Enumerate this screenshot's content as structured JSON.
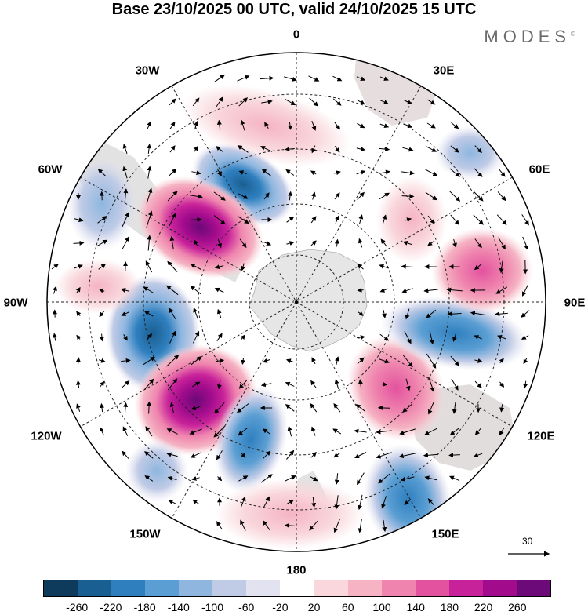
{
  "title": "Base 23/10/2025 00 UTC, valid 24/10/2025 15 UTC",
  "brand": "MODES",
  "brand_mark": "©",
  "longitude_labels": {
    "lon_0": "0",
    "lon_30e": "30E",
    "lon_60e": "60E",
    "lon_90e": "90E",
    "lon_120e": "120E",
    "lon_150e": "150E",
    "lon_180": "180",
    "lon_150w": "150W",
    "lon_120w": "120W",
    "lon_90w": "90W",
    "lon_60w": "60W",
    "lon_30w": "30W"
  },
  "reference_vector": "30",
  "colorbar": {
    "colors": [
      "#0e3a5c",
      "#1a5f92",
      "#2f7fbf",
      "#5a9ed3",
      "#8eb6df",
      "#c0cbe6",
      "#e3e2f0",
      "#ffffff",
      "#f9d7dc",
      "#f5b3c3",
      "#ef84ae",
      "#e3529f",
      "#c8229a",
      "#a10b8c",
      "#6b0a78"
    ],
    "tick_labels": [
      "-260",
      "-220",
      "-180",
      "-140",
      "-100",
      "-60",
      "-20",
      "20",
      "60",
      "100",
      "140",
      "180",
      "220",
      "260"
    ]
  },
  "colors": {
    "land_gray": "#d9d9d9",
    "antarctica": "#e6e6e6"
  },
  "map_data": {
    "projection": "south polar stereographic",
    "anomalies": [
      {
        "name": "negative-cell-southwest-atlantic",
        "sign": "negative",
        "peak": -220
      },
      {
        "name": "positive-cell-south-america",
        "sign": "positive",
        "peak": 260
      },
      {
        "name": "negative-cell-southeast-pacific",
        "sign": "negative",
        "peak": -220
      },
      {
        "name": "positive-cell-south-pacific",
        "sign": "positive",
        "peak": 260
      },
      {
        "name": "negative-cell-central-pacific",
        "sign": "negative",
        "peak": -180
      },
      {
        "name": "positive-cell-south-indian",
        "sign": "positive",
        "peak": 180
      },
      {
        "name": "negative-cell-east-indian",
        "sign": "negative",
        "peak": -180
      },
      {
        "name": "positive-cell-australia",
        "sign": "positive",
        "peak": 140
      },
      {
        "name": "negative-cell-tasman",
        "sign": "negative",
        "peak": -140
      },
      {
        "name": "positive-cell-southwest-indian",
        "sign": "positive",
        "peak": 100
      }
    ]
  }
}
